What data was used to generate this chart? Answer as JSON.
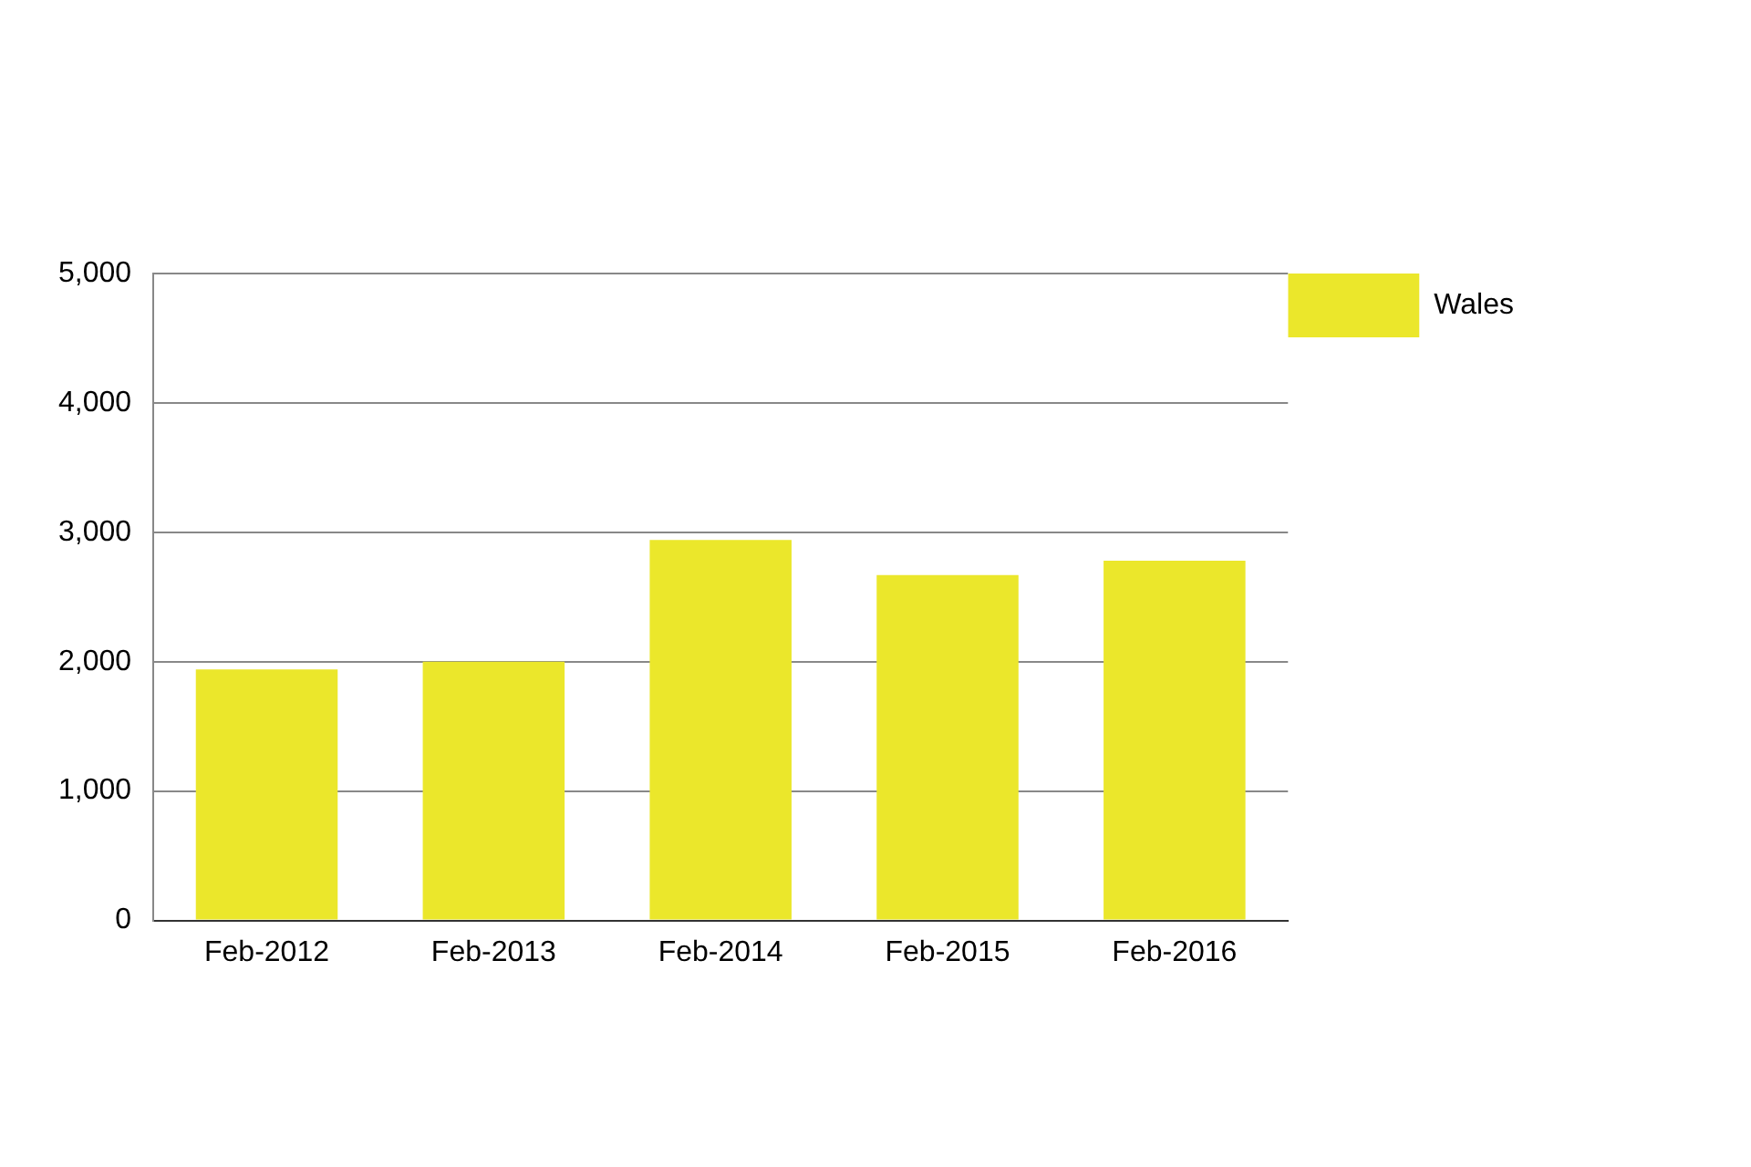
{
  "chart_data": {
    "type": "bar",
    "categories": [
      "Feb-2012",
      "Feb-2013",
      "Feb-2014",
      "Feb-2015",
      "Feb-2016"
    ],
    "series": [
      {
        "name": "Wales",
        "color": "#ebe72b",
        "values": [
          1940,
          2000,
          2940,
          2670,
          2780
        ]
      }
    ],
    "ylim": [
      0,
      5000
    ],
    "yticks": [
      0,
      {
        "value": 1000,
        "label": "1,000"
      },
      {
        "value": 2000,
        "label": "2,000"
      },
      {
        "value": 3000,
        "label": "3,000"
      },
      {
        "value": 4000,
        "label": "4,000"
      },
      {
        "value": 5000,
        "label": "5,000"
      }
    ],
    "grid": "y",
    "legend": "top right"
  }
}
